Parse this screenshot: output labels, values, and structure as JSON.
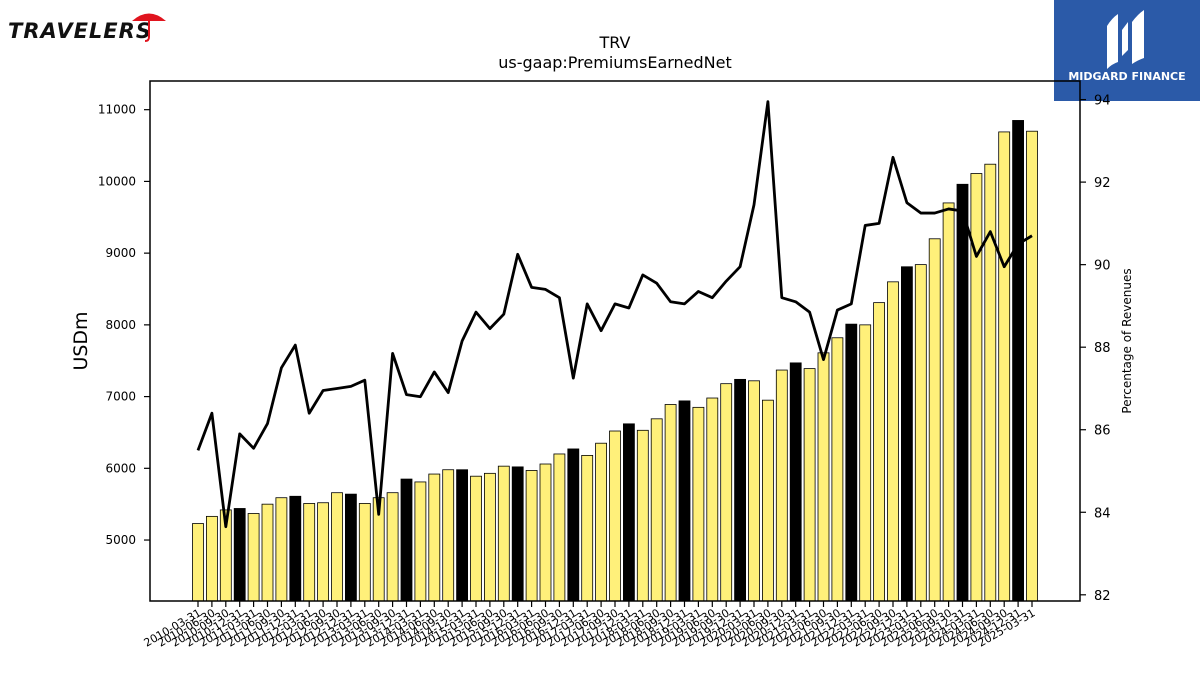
{
  "brand_left": {
    "name": "TRAVELERS",
    "color": "#111111",
    "umbrella_color": "#e0141e",
    "icon": "umbrella-icon"
  },
  "brand_right": {
    "name": "MIDGARD FINANCE",
    "bg_color": "#2b5aa8",
    "icon": "midgard-m-icon"
  },
  "chart_data": {
    "type": "bar",
    "title": "TRV",
    "subtitle": "us-gaap:PremiumsEarnedNet",
    "ylabel": "USDm",
    "y2label": "Percentage of Revenues",
    "ylim": [
      4150,
      11400
    ],
    "y2lim": [
      81.85,
      94.45
    ],
    "yticks": [
      5000,
      6000,
      7000,
      8000,
      9000,
      10000,
      11000
    ],
    "y2ticks": [
      82,
      84,
      86,
      88,
      90,
      92,
      94
    ],
    "bar_color": "#fff07a",
    "q4_bar_color": "#000000",
    "line_color": "#000000",
    "grid": false,
    "categories": [
      "2010-03-31",
      "2010-06-30",
      "2010-09-30",
      "2010-12-31",
      "2011-03-31",
      "2011-06-30",
      "2011-09-30",
      "2011-12-31",
      "2012-03-31",
      "2012-06-30",
      "2012-09-30",
      "2012-12-31",
      "2013-03-31",
      "2013-06-30",
      "2013-09-30",
      "2013-12-31",
      "2014-03-31",
      "2014-06-30",
      "2014-09-30",
      "2014-12-31",
      "2015-03-31",
      "2015-06-30",
      "2015-09-30",
      "2015-12-31",
      "2016-03-31",
      "2016-06-30",
      "2016-09-30",
      "2016-12-31",
      "2017-03-31",
      "2017-06-30",
      "2017-09-30",
      "2017-12-31",
      "2018-03-31",
      "2018-06-30",
      "2018-09-30",
      "2018-12-31",
      "2019-03-31",
      "2019-06-30",
      "2019-09-30",
      "2019-12-31",
      "2020-03-31",
      "2020-06-30",
      "2020-09-30",
      "2020-12-31",
      "2021-03-31",
      "2021-06-30",
      "2021-09-30",
      "2021-12-31",
      "2022-03-31",
      "2022-06-30",
      "2022-09-30",
      "2022-12-31",
      "2023-03-31",
      "2023-06-30",
      "2023-09-30",
      "2023-12-31",
      "2024-03-31",
      "2024-06-30",
      "2024-09-30",
      "2024-12-31",
      "2025-03-31"
    ],
    "series": [
      {
        "kind": "bar",
        "values": [
          5230,
          5330,
          5420,
          5440,
          5370,
          5500,
          5590,
          5610,
          5510,
          5520,
          5660,
          5640,
          5510,
          5590,
          5660,
          5850,
          5810,
          5920,
          5980,
          5980,
          5890,
          5930,
          6030,
          6020,
          5970,
          6060,
          6200,
          6270,
          6180,
          6350,
          6520,
          6620,
          6530,
          6690,
          6890,
          6940,
          6850,
          6980,
          7180,
          7240,
          7220,
          6950,
          7370,
          7470,
          7390,
          7610,
          7820,
          8010,
          8000,
          8310,
          8600,
          8810,
          8840,
          9200,
          9700,
          9960,
          10110,
          10240,
          10690,
          10850,
          10700
        ]
      },
      {
        "kind": "line",
        "axis": "right",
        "values": [
          85.5,
          86.4,
          83.65,
          85.9,
          85.55,
          86.15,
          87.5,
          88.05,
          86.4,
          86.95,
          87.0,
          87.05,
          87.2,
          83.95,
          87.85,
          86.85,
          86.8,
          87.4,
          86.9,
          88.15,
          88.85,
          88.45,
          88.8,
          90.25,
          89.45,
          89.4,
          89.2,
          87.25,
          89.05,
          88.4,
          89.05,
          88.95,
          89.75,
          89.55,
          89.1,
          89.05,
          89.35,
          89.2,
          89.6,
          89.95,
          91.45,
          93.95,
          89.2,
          89.1,
          88.85,
          87.7,
          88.9,
          89.05,
          90.95,
          91.0,
          92.6,
          91.5,
          91.25,
          91.25,
          91.35,
          91.3,
          90.2,
          90.8,
          89.95,
          90.5,
          90.7
        ]
      }
    ]
  }
}
